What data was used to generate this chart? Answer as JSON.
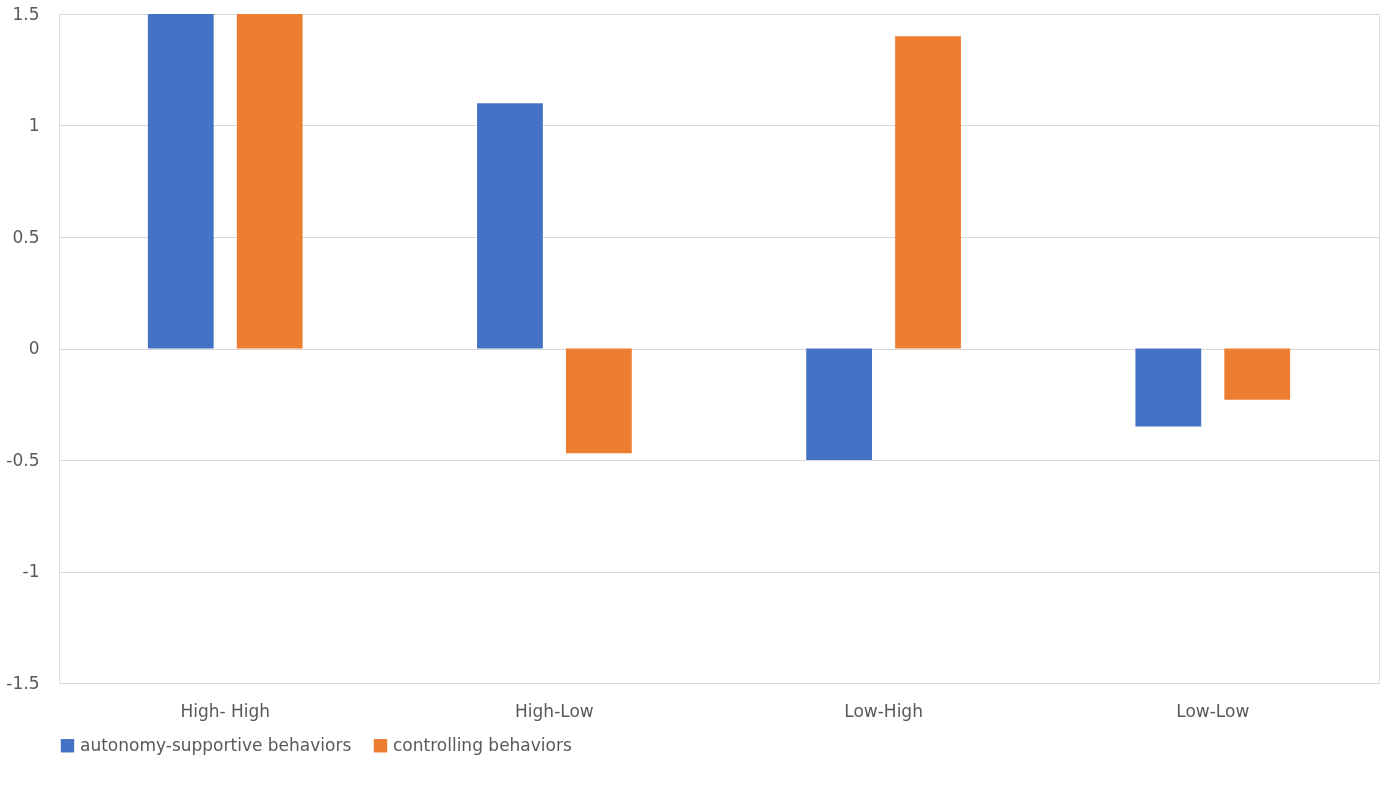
{
  "chart_data": {
    "type": "bar",
    "categories": [
      "High- High",
      "High-Low",
      "Low-High",
      "Low-Low"
    ],
    "series": [
      {
        "name": "autonomy-supportive behaviors",
        "color": "#4472c4",
        "values": [
          1.5,
          1.1,
          -0.5,
          -0.35
        ]
      },
      {
        "name": "controlling behaviors",
        "color": "#ed7d31",
        "values": [
          1.5,
          -0.47,
          1.4,
          -0.23
        ]
      }
    ],
    "ylim": [
      -1.5,
      1.5
    ],
    "yticks": [
      -1.5,
      -1,
      -0.5,
      0,
      0.5,
      1,
      1.5
    ],
    "grid": "y",
    "legend": "bottom"
  }
}
